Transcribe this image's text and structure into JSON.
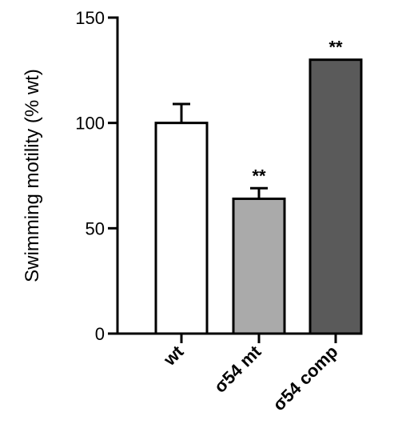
{
  "chart_data": {
    "type": "bar",
    "ylabel": "Swimming motility (% wt)",
    "xlabel": "",
    "title": "",
    "ylim": [
      0,
      150
    ],
    "yticks": [
      0,
      50,
      100,
      150
    ],
    "categories": [
      "wt",
      "σ54 mt",
      "σ54 comp"
    ],
    "values": [
      100,
      64,
      130
    ],
    "errors": [
      9,
      5,
      0
    ],
    "significance": [
      "",
      "**",
      "**"
    ],
    "bar_fill_colors": [
      "#ffffff",
      "#aaaaaa",
      "#5a5a5a"
    ],
    "grid": false,
    "legend": "none"
  }
}
